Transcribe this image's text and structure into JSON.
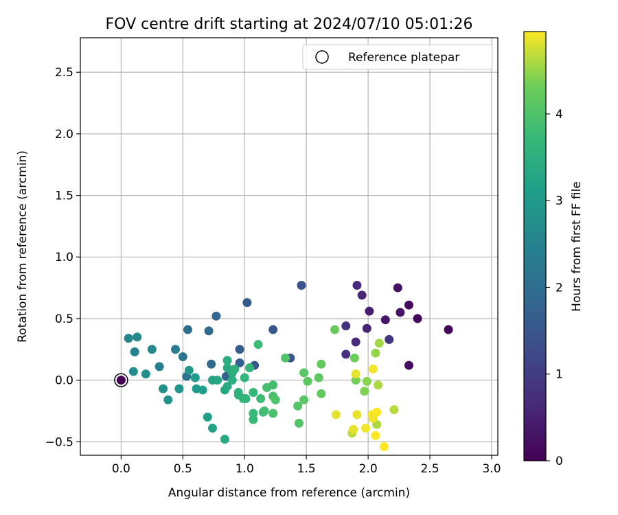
{
  "chart_data": {
    "type": "scatter",
    "title": "FOV centre drift starting at 2024/07/10 05:01:26",
    "xlabel": "Angular distance from reference (arcmin)",
    "ylabel": "Rotation from reference (arcmin)",
    "xlim": [
      -0.33,
      3.05
    ],
    "ylim": [
      -0.61,
      2.78
    ],
    "xticks": [
      0.0,
      0.5,
      1.0,
      1.5,
      2.0,
      2.5,
      3.0
    ],
    "xtick_labels": [
      "0.0",
      "0.5",
      "1.0",
      "1.5",
      "2.0",
      "2.5",
      "3.0"
    ],
    "yticks": [
      -0.5,
      0.0,
      0.5,
      1.0,
      1.5,
      2.0,
      2.5
    ],
    "ytick_labels": [
      "−0.5",
      "0.0",
      "0.5",
      "1.0",
      "1.5",
      "2.0",
      "2.5"
    ],
    "grid": true,
    "legend": {
      "placement": "top-right",
      "entries": [
        "Reference platepar"
      ]
    },
    "reference_point": {
      "x": 0.0,
      "y": 0.0,
      "h": 0.0
    },
    "colorbar": {
      "label": "Hours from first FF file",
      "colormap": "viridis",
      "range": [
        0,
        4.95
      ],
      "ticks": [
        0,
        1,
        2,
        3,
        4
      ],
      "tick_labels": [
        "0",
        "1",
        "2",
        "3",
        "4"
      ]
    },
    "points": [
      {
        "x": 2.65,
        "y": 0.41,
        "h": 0.05
      },
      {
        "x": 2.4,
        "y": 0.5,
        "h": 0.1
      },
      {
        "x": 2.33,
        "y": 0.61,
        "h": 0.15
      },
      {
        "x": 2.33,
        "y": 0.12,
        "h": 0.2
      },
      {
        "x": 2.24,
        "y": 0.75,
        "h": 0.25
      },
      {
        "x": 2.26,
        "y": 0.55,
        "h": 0.3
      },
      {
        "x": 2.14,
        "y": 0.49,
        "h": 0.35
      },
      {
        "x": 2.01,
        "y": 0.56,
        "h": 0.5
      },
      {
        "x": 1.99,
        "y": 0.42,
        "h": 0.55
      },
      {
        "x": 1.95,
        "y": 0.69,
        "h": 0.6
      },
      {
        "x": 1.91,
        "y": 0.77,
        "h": 0.65
      },
      {
        "x": 1.9,
        "y": 0.31,
        "h": 0.7
      },
      {
        "x": 1.82,
        "y": 0.21,
        "h": 0.75
      },
      {
        "x": 1.82,
        "y": 0.44,
        "h": 0.8
      },
      {
        "x": 2.17,
        "y": 0.33,
        "h": 0.9
      },
      {
        "x": 1.46,
        "y": 0.77,
        "h": 1.4
      },
      {
        "x": 1.37,
        "y": 0.18,
        "h": 1.45
      },
      {
        "x": 1.23,
        "y": 0.41,
        "h": 1.5
      },
      {
        "x": 1.08,
        "y": 0.12,
        "h": 1.55
      },
      {
        "x": 1.02,
        "y": 0.63,
        "h": 1.6
      },
      {
        "x": 0.96,
        "y": 0.25,
        "h": 1.65
      },
      {
        "x": 0.96,
        "y": 0.14,
        "h": 1.7
      },
      {
        "x": 0.85,
        "y": 0.03,
        "h": 1.75
      },
      {
        "x": 0.77,
        "y": 0.52,
        "h": 1.8
      },
      {
        "x": 0.73,
        "y": 0.13,
        "h": 1.85
      },
      {
        "x": 0.71,
        "y": 0.4,
        "h": 1.9
      },
      {
        "x": 0.54,
        "y": 0.41,
        "h": 2.0
      },
      {
        "x": 0.53,
        "y": 0.03,
        "h": 2.1
      },
      {
        "x": 0.5,
        "y": 0.19,
        "h": 2.2
      },
      {
        "x": 0.44,
        "y": 0.25,
        "h": 2.3
      },
      {
        "x": 0.31,
        "y": 0.11,
        "h": 2.4
      },
      {
        "x": 0.11,
        "y": 0.23,
        "h": 2.5
      },
      {
        "x": 0.06,
        "y": 0.34,
        "h": 2.55
      },
      {
        "x": 0.13,
        "y": 0.35,
        "h": 2.6
      },
      {
        "x": 0.25,
        "y": 0.25,
        "h": 2.65
      },
      {
        "x": 0.1,
        "y": 0.07,
        "h": 2.7
      },
      {
        "x": 0.2,
        "y": 0.05,
        "h": 2.75
      },
      {
        "x": 0.34,
        "y": -0.07,
        "h": 2.8
      },
      {
        "x": 0.38,
        "y": -0.16,
        "h": 2.85
      },
      {
        "x": 0.47,
        "y": -0.07,
        "h": 2.9
      },
      {
        "x": 0.55,
        "y": 0.08,
        "h": 2.95
      },
      {
        "x": 0.6,
        "y": 0.02,
        "h": 3.0
      },
      {
        "x": 0.61,
        "y": -0.07,
        "h": 3.05
      },
      {
        "x": 0.66,
        "y": -0.08,
        "h": 3.1
      },
      {
        "x": 0.7,
        "y": -0.3,
        "h": 3.15
      },
      {
        "x": 0.74,
        "y": -0.39,
        "h": 3.2
      },
      {
        "x": 0.74,
        "y": 0.0,
        "h": 3.25
      },
      {
        "x": 0.78,
        "y": 0.0,
        "h": 3.3
      },
      {
        "x": 0.84,
        "y": -0.08,
        "h": 3.35
      },
      {
        "x": 0.84,
        "y": -0.48,
        "h": 3.4
      },
      {
        "x": 0.86,
        "y": 0.1,
        "h": 3.4
      },
      {
        "x": 0.86,
        "y": -0.05,
        "h": 3.45
      },
      {
        "x": 0.86,
        "y": 0.16,
        "h": 3.45
      },
      {
        "x": 0.9,
        "y": 0.0,
        "h": 3.5
      },
      {
        "x": 0.9,
        "y": 0.06,
        "h": 3.5
      },
      {
        "x": 0.92,
        "y": 0.09,
        "h": 3.55
      },
      {
        "x": 0.95,
        "y": -0.1,
        "h": 3.55
      },
      {
        "x": 0.95,
        "y": -0.12,
        "h": 3.6
      },
      {
        "x": 0.99,
        "y": -0.15,
        "h": 3.6
      },
      {
        "x": 1.0,
        "y": 0.02,
        "h": 3.65
      },
      {
        "x": 1.01,
        "y": -0.15,
        "h": 3.65
      },
      {
        "x": 1.04,
        "y": 0.1,
        "h": 3.7
      },
      {
        "x": 1.07,
        "y": -0.1,
        "h": 3.7
      },
      {
        "x": 1.07,
        "y": -0.27,
        "h": 3.75
      },
      {
        "x": 1.07,
        "y": -0.32,
        "h": 3.75
      },
      {
        "x": 1.11,
        "y": 0.29,
        "h": 3.8
      },
      {
        "x": 1.13,
        "y": -0.15,
        "h": 3.8
      },
      {
        "x": 1.15,
        "y": -0.26,
        "h": 3.85
      },
      {
        "x": 1.16,
        "y": -0.25,
        "h": 3.85
      },
      {
        "x": 1.18,
        "y": -0.06,
        "h": 3.9
      },
      {
        "x": 1.23,
        "y": -0.04,
        "h": 3.9
      },
      {
        "x": 1.23,
        "y": -0.27,
        "h": 3.95
      },
      {
        "x": 1.23,
        "y": -0.13,
        "h": 3.95
      },
      {
        "x": 1.25,
        "y": -0.16,
        "h": 4.0
      },
      {
        "x": 1.33,
        "y": 0.18,
        "h": 4.0
      },
      {
        "x": 1.43,
        "y": -0.21,
        "h": 4.05
      },
      {
        "x": 1.44,
        "y": -0.35,
        "h": 4.05
      },
      {
        "x": 1.48,
        "y": 0.06,
        "h": 4.1
      },
      {
        "x": 1.48,
        "y": -0.16,
        "h": 4.1
      },
      {
        "x": 1.51,
        "y": -0.01,
        "h": 4.15
      },
      {
        "x": 1.6,
        "y": 0.02,
        "h": 4.15
      },
      {
        "x": 1.62,
        "y": 0.13,
        "h": 4.2
      },
      {
        "x": 1.62,
        "y": -0.11,
        "h": 4.2
      },
      {
        "x": 1.73,
        "y": 0.41,
        "h": 4.25
      },
      {
        "x": 1.89,
        "y": 0.18,
        "h": 4.3
      },
      {
        "x": 1.9,
        "y": 0.0,
        "h": 4.35
      },
      {
        "x": 1.97,
        "y": -0.09,
        "h": 4.4
      },
      {
        "x": 1.99,
        "y": -0.01,
        "h": 4.45
      },
      {
        "x": 2.06,
        "y": 0.22,
        "h": 4.5
      },
      {
        "x": 2.09,
        "y": 0.3,
        "h": 4.55
      },
      {
        "x": 2.08,
        "y": -0.04,
        "h": 4.6
      },
      {
        "x": 2.07,
        "y": -0.36,
        "h": 4.6
      },
      {
        "x": 2.21,
        "y": -0.24,
        "h": 4.65
      },
      {
        "x": 1.87,
        "y": -0.43,
        "h": 4.65
      },
      {
        "x": 1.74,
        "y": -0.28,
        "h": 4.85
      },
      {
        "x": 1.88,
        "y": -0.4,
        "h": 4.85
      },
      {
        "x": 1.9,
        "y": 0.05,
        "h": 4.85
      },
      {
        "x": 1.91,
        "y": -0.28,
        "h": 4.85
      },
      {
        "x": 1.98,
        "y": -0.39,
        "h": 4.9
      },
      {
        "x": 2.03,
        "y": -0.28,
        "h": 4.9
      },
      {
        "x": 2.04,
        "y": 0.09,
        "h": 4.9
      },
      {
        "x": 2.04,
        "y": -0.31,
        "h": 4.9
      },
      {
        "x": 2.06,
        "y": -0.45,
        "h": 4.95
      },
      {
        "x": 2.07,
        "y": -0.26,
        "h": 4.95
      },
      {
        "x": 2.13,
        "y": -0.54,
        "h": 4.95
      }
    ]
  }
}
